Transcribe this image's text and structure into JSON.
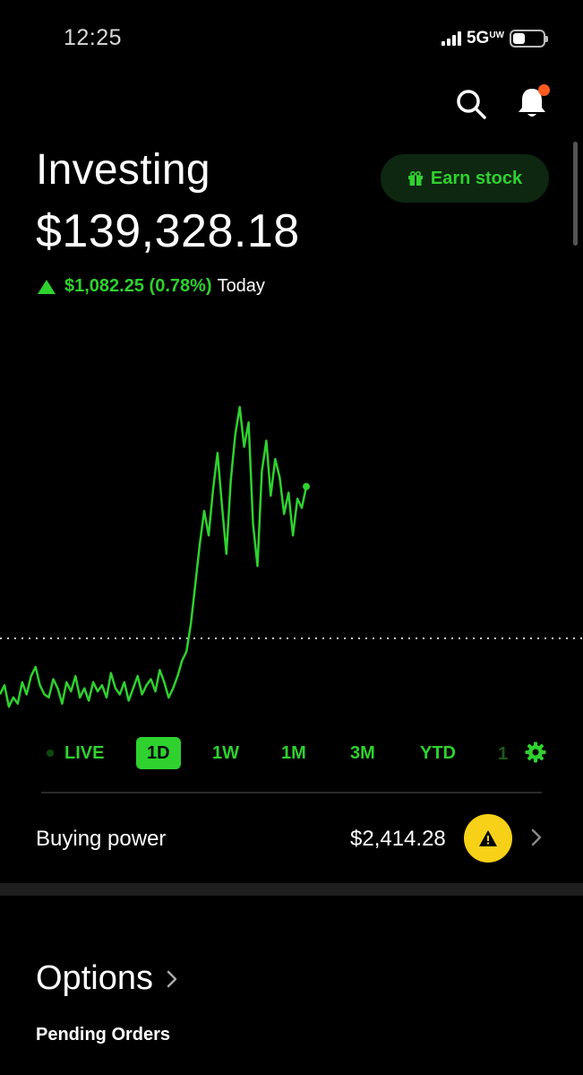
{
  "status": {
    "time": "12:25",
    "network": "5G",
    "network_suffix": "UW"
  },
  "header": {
    "title": "Investing",
    "earn_label": "Earn stock"
  },
  "portfolio": {
    "value": "$139,328.18",
    "change_amount": "$1,082.25 (0.78%)",
    "change_period": "Today"
  },
  "colors": {
    "gain": "#2fd12f",
    "background": "#000000",
    "warning": "#f7d117",
    "notification": "#ff5a1f"
  },
  "chart_data": {
    "type": "line",
    "title": "",
    "baseline_style": "dotted",
    "series": [
      {
        "values": [
          0.06,
          0.09,
          0.02,
          0.05,
          0.03,
          0.1,
          0.06,
          0.12,
          0.15,
          0.09,
          0.06,
          0.05,
          0.11,
          0.08,
          0.03,
          0.1,
          0.07,
          0.12,
          0.05,
          0.08,
          0.04,
          0.1,
          0.07,
          0.09,
          0.05,
          0.13,
          0.08,
          0.06,
          0.1,
          0.04,
          0.08,
          0.12,
          0.06,
          0.09,
          0.11,
          0.07,
          0.14,
          0.1,
          0.05,
          0.08,
          0.12,
          0.17,
          0.2,
          0.29,
          0.42,
          0.55,
          0.66,
          0.58,
          0.73,
          0.85,
          0.68,
          0.52,
          0.76,
          0.91,
          1.0,
          0.87,
          0.95,
          0.62,
          0.48,
          0.79,
          0.89,
          0.71,
          0.83,
          0.77,
          0.65,
          0.72,
          0.58,
          0.7,
          0.67,
          0.74
        ]
      }
    ]
  },
  "ranges": {
    "live": "LIVE",
    "one_day": "1D",
    "one_week": "1W",
    "one_month": "1M",
    "three_month": "3M",
    "ytd": "YTD",
    "one_year_partial": "1"
  },
  "buying_power": {
    "label": "Buying power",
    "value": "$2,414.28"
  },
  "sections": {
    "options_title": "Options",
    "pending_orders": "Pending Orders"
  },
  "icons": {
    "search": "search-icon",
    "bell": "bell-icon",
    "gift": "gift-icon",
    "gear": "gear-icon",
    "warning": "warning-icon",
    "chevron": "chevron-right-icon"
  }
}
